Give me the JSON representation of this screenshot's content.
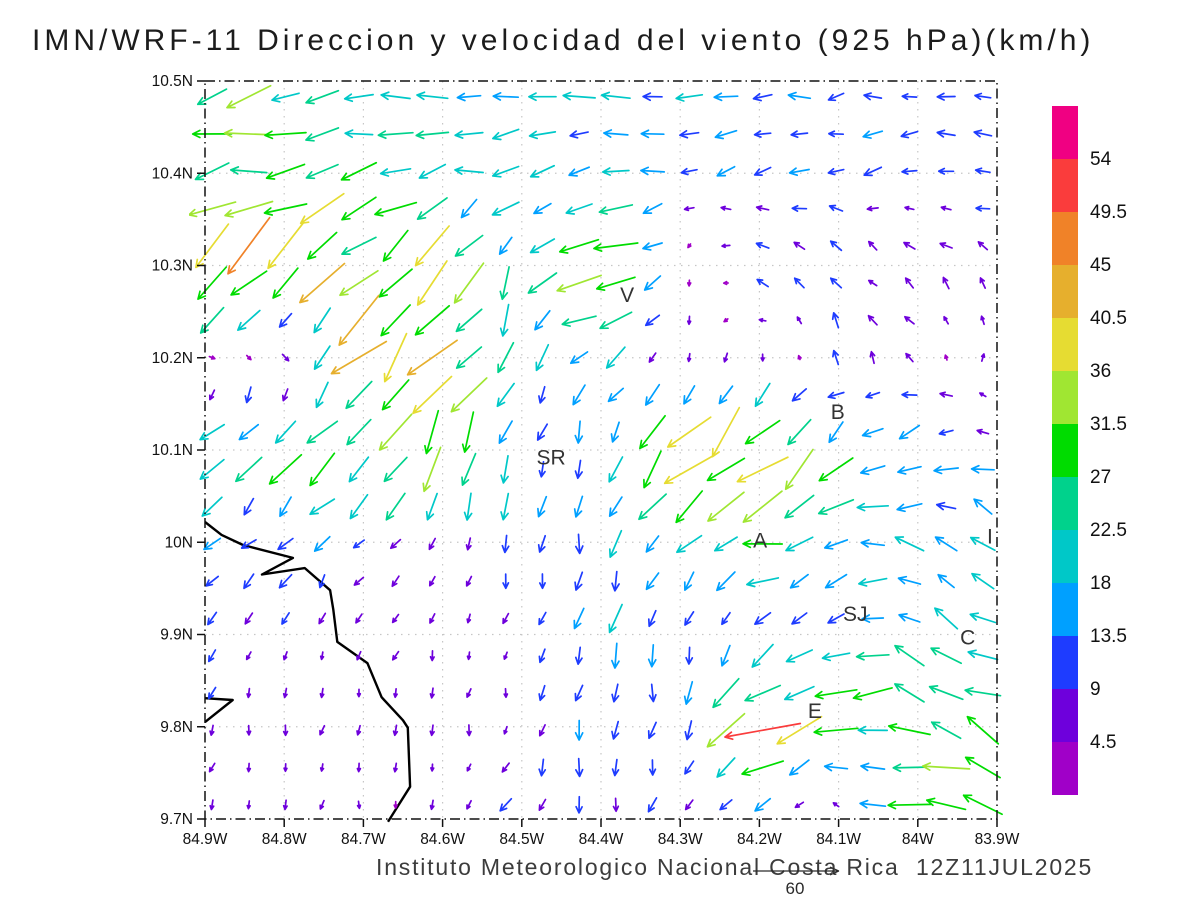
{
  "page": {
    "title": "IMN/WRF-11 Direccion y velocidad del viento (925 hPa)(km/h)",
    "footer": "Instituto Meteorologico Nacional Costa Rica  12Z11JUL2025"
  },
  "chart_data": {
    "type": "vector_field",
    "title": "IMN/WRF-11 Direccion y velocidad del viento (925 hPa)(km/h)",
    "footer": "Instituto Meteorologico Nacional Costa Rica  12Z11JUL2025",
    "units": "km/h",
    "pressure_level": "925 hPa",
    "model": "IMN/WRF-11",
    "valid_time": "12Z11JUL2025",
    "lon_range": [
      -84.9,
      -83.9
    ],
    "lat_range": [
      9.7,
      10.5
    ],
    "grid_on": true,
    "x_axis": {
      "ticks": [
        {
          "value": -84.9,
          "label": "84.9W"
        },
        {
          "value": -84.8,
          "label": "84.8W"
        },
        {
          "value": -84.7,
          "label": "84.7W"
        },
        {
          "value": -84.6,
          "label": "84.6W"
        },
        {
          "value": -84.5,
          "label": "84.5W"
        },
        {
          "value": -84.4,
          "label": "84.4W"
        },
        {
          "value": -84.3,
          "label": "84.3W"
        },
        {
          "value": -84.2,
          "label": "84.2W"
        },
        {
          "value": -84.1,
          "label": "84.1W"
        },
        {
          "value": -84.0,
          "label": "84W"
        },
        {
          "value": -83.9,
          "label": "83.9W"
        }
      ]
    },
    "y_axis": {
      "ticks": [
        {
          "value": 10.5,
          "label": "10.5N"
        },
        {
          "value": 10.4,
          "label": "10.4N"
        },
        {
          "value": 10.3,
          "label": "10.3N"
        },
        {
          "value": 10.2,
          "label": "10.2N"
        },
        {
          "value": 10.1,
          "label": "10.1N"
        },
        {
          "value": 10.0,
          "label": "10N"
        },
        {
          "value": 9.9,
          "label": "9.9N"
        },
        {
          "value": 9.8,
          "label": "9.8N"
        },
        {
          "value": 9.7,
          "label": "9.7N"
        }
      ]
    },
    "colorbar": {
      "position": "right",
      "levels": [
        4.5,
        9,
        13.5,
        18,
        22.5,
        27,
        31.5,
        36,
        40.5,
        45,
        49.5,
        54
      ],
      "labels": [
        "4.5",
        "9",
        "13.5",
        "18",
        "22.5",
        "27",
        "31.5",
        "36",
        "40.5",
        "45",
        "49.5",
        "54"
      ],
      "colors": [
        "#A000C8",
        "#6E00DC",
        "#1E3CFF",
        "#00A0FF",
        "#00C8C8",
        "#00D28C",
        "#00DC00",
        "#A0E632",
        "#E6DC32",
        "#E6AF2D",
        "#F08228",
        "#FA3C3C",
        "#F00082"
      ]
    },
    "reference_vector": {
      "value": 60,
      "label": "60"
    },
    "wind_grid": {
      "comment_units_kmh": "u eastward, v northward, rows ordered lat 10.5N -> 9.7N",
      "lons": [
        -84.9,
        -84.8,
        -84.7,
        -84.6,
        -84.5,
        -84.4,
        -84.3,
        -84.2,
        -84.1,
        -84.0,
        -83.9
      ],
      "lats": [
        10.5,
        10.4,
        10.3,
        10.2,
        10.1,
        10.0,
        9.9,
        9.8,
        9.7
      ],
      "u": [
        [
          -30,
          -24,
          -21,
          -20,
          -19,
          -18,
          -15,
          -14,
          -12,
          -11,
          -11
        ],
        [
          -34,
          -30,
          -21,
          -19,
          -18,
          -15,
          -13,
          -11,
          -11,
          -10,
          -10
        ],
        [
          -36,
          -31,
          -26,
          -18,
          -6,
          -38,
          2,
          -8,
          -8,
          -5,
          -7
        ],
        [
          4,
          5,
          -28,
          -24,
          -5,
          -14,
          -2,
          -1,
          -2,
          -4,
          4
        ],
        [
          -15,
          -20,
          -20,
          -12,
          -3,
          -3,
          -26,
          -25,
          -18,
          -16,
          -13
        ],
        [
          -10,
          -9,
          -7,
          -4,
          -3,
          -4,
          -14,
          -26,
          -21,
          -17,
          -13
        ],
        [
          -7,
          -3,
          -2,
          -2,
          -2,
          -4,
          -3,
          -3,
          -12,
          -20,
          -16
        ],
        [
          -2,
          -1,
          -1,
          -2,
          -1,
          -2,
          -2,
          -40,
          -30,
          -24,
          -22
        ],
        [
          -2,
          -2,
          -1,
          -1,
          -6,
          -3,
          -2,
          -2,
          1,
          -31,
          -22
        ]
      ],
      "v": [
        [
          -5,
          -4,
          -3,
          -3,
          -2,
          -2,
          -2,
          -1,
          -1,
          -1,
          0
        ],
        [
          -8,
          -6,
          -5,
          -4,
          -3,
          -3,
          -3,
          -2,
          -2,
          -2,
          -1
        ],
        [
          -33,
          -29,
          -26,
          -27,
          -18,
          -4,
          -5,
          7,
          7,
          5,
          6
        ],
        [
          -3,
          -2,
          -30,
          -28,
          -15,
          -12,
          -5,
          -5,
          9,
          4,
          4
        ],
        [
          -13,
          -18,
          -20,
          -33,
          -14,
          -12,
          -27,
          -28,
          -20,
          -6,
          6
        ],
        [
          -10,
          -9,
          -8,
          -9,
          -13,
          -17,
          -14,
          -5,
          -4,
          8,
          8
        ],
        [
          -7,
          -6,
          -6,
          -6,
          -7,
          -18,
          -13,
          -11,
          -8,
          10,
          8
        ],
        [
          -6,
          -6,
          -5,
          -6,
          -6,
          -13,
          -11,
          -20,
          -8,
          10,
          10
        ],
        [
          -5,
          -5,
          -6,
          -5,
          -10,
          -11,
          -7,
          -6,
          6,
          4,
          8
        ]
      ]
    },
    "stations": [
      {
        "label": "V",
        "lon": -84.367,
        "lat": 10.268
      },
      {
        "label": "B",
        "lon": -84.101,
        "lat": 10.141
      },
      {
        "label": "SR",
        "lon": -84.463,
        "lat": 10.092
      },
      {
        "label": "A",
        "lon": -84.199,
        "lat": 10.002
      },
      {
        "label": "I",
        "lon": -83.909,
        "lat": 10.006
      },
      {
        "label": "SJ",
        "lon": -84.079,
        "lat": 9.922
      },
      {
        "label": "C",
        "lon": -83.937,
        "lat": 9.897
      },
      {
        "label": "E",
        "lon": -84.13,
        "lat": 9.817
      }
    ],
    "coastlines": [
      [
        [
          -84.9,
          10.022
        ],
        [
          -84.879,
          10.008
        ],
        [
          -84.852,
          9.997
        ],
        [
          -84.789,
          9.983
        ],
        [
          -84.828,
          9.965
        ],
        [
          -84.774,
          9.972
        ],
        [
          -84.742,
          9.948
        ],
        [
          -84.738,
          9.927
        ],
        [
          -84.733,
          9.892
        ],
        [
          -84.695,
          9.869
        ],
        [
          -84.677,
          9.832
        ],
        [
          -84.65,
          9.807
        ],
        [
          -84.644,
          9.799
        ],
        [
          -84.641,
          9.735
        ],
        [
          -84.666,
          9.701
        ],
        [
          -84.669,
          9.697
        ]
      ],
      [
        [
          -84.9,
          9.831
        ],
        [
          -84.865,
          9.829
        ],
        [
          -84.9,
          9.805
        ]
      ]
    ]
  }
}
